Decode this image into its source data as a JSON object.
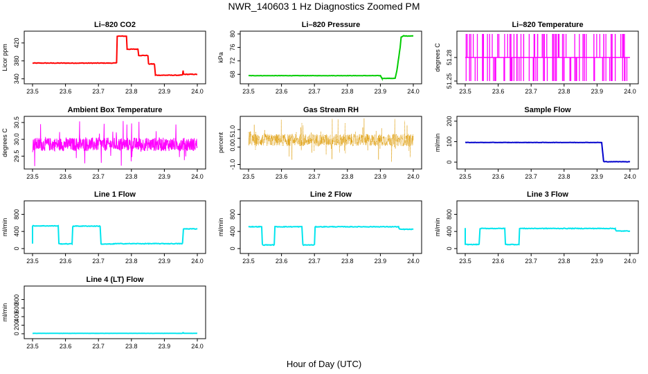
{
  "page": {
    "title": "NWR_140603  1 Hz Diagnostics Zoomed PM",
    "xlabel": "Hour of Day (UTC)"
  },
  "chart_data": [
    {
      "type": "line",
      "title": "Li–820 CO2",
      "ylabel": "Licor ppm",
      "color": "#ff0000",
      "xlim": [
        23.5,
        24.0
      ],
      "ylim": [
        335,
        440
      ],
      "xticks": [
        "23.5",
        "23.6",
        "23.7",
        "23.8",
        "23.9",
        "24.0"
      ],
      "yticks": [
        340,
        380,
        420
      ],
      "noise": 0.6,
      "x": [
        23.5,
        23.755,
        23.757,
        23.785,
        23.787,
        23.82,
        23.822,
        23.85,
        23.852,
        23.87,
        23.873,
        23.955,
        23.957,
        23.958,
        23.96,
        24.0
      ],
      "y": [
        375,
        375,
        435,
        435,
        406,
        406,
        392,
        392,
        373,
        373,
        348,
        348,
        358,
        350,
        350,
        350
      ]
    },
    {
      "type": "line",
      "title": "Li–820 Pressure",
      "ylabel": "kPa",
      "color": "#00cc00",
      "xlim": [
        23.5,
        24.0
      ],
      "ylim": [
        66,
        80
      ],
      "xticks": [
        "23.5",
        "23.6",
        "23.7",
        "23.8",
        "23.9",
        "24.0"
      ],
      "yticks": [
        68,
        72,
        76,
        80
      ],
      "noise": 0.05,
      "x": [
        23.5,
        23.9,
        23.905,
        23.945,
        23.95,
        23.96,
        23.963,
        23.97,
        24.0
      ],
      "y": [
        67.6,
        67.6,
        66.8,
        66.8,
        69,
        76,
        79,
        79.4,
        79.4
      ]
    },
    {
      "type": "spikes",
      "title": "Li–820 Temperature",
      "ylabel": "degrees C",
      "color": "#ff00ff",
      "xlim": [
        23.5,
        24.0
      ],
      "ylim": [
        51.25,
        51.31
      ],
      "base": 51.28,
      "high": 51.31,
      "low": 51.25,
      "count": 95,
      "xticks": [
        "23.5",
        "23.6",
        "23.7",
        "23.8",
        "23.9",
        "24.0"
      ],
      "yticks": [
        "51.25",
        "51.28"
      ]
    },
    {
      "type": "noise",
      "title": "Ambient Box Temperature",
      "ylabel": "degrees C",
      "color": "#ff00ff",
      "xlim": [
        23.5,
        24.0
      ],
      "ylim": [
        29.2,
        30.6
      ],
      "center": 29.85,
      "amp": 0.2,
      "xticks": [
        "23.5",
        "23.6",
        "23.7",
        "23.8",
        "23.9",
        "24.0"
      ],
      "yticks": [
        "29.5",
        "30.0",
        "30.5"
      ]
    },
    {
      "type": "noise-dots",
      "title": "Gas Stream RH",
      "ylabel": "percent",
      "color": "#dd9900",
      "xlim": [
        23.5,
        24.0
      ],
      "ylim": [
        -1.1,
        1.6
      ],
      "center": 0.4,
      "amp": 0.35,
      "xticks": [
        "23.5",
        "23.6",
        "23.7",
        "23.8",
        "23.9",
        "24.0"
      ],
      "yticks": [
        "-1.0",
        "0.0",
        "0.5",
        "1.0"
      ]
    },
    {
      "type": "line",
      "title": "Sample Flow",
      "ylabel": "ml/min",
      "color": "#0000cc",
      "xlim": [
        23.5,
        24.0
      ],
      "ylim": [
        -20,
        210
      ],
      "xticks": [
        "23.5",
        "23.6",
        "23.7",
        "23.8",
        "23.9",
        "24.0"
      ],
      "yticks": [
        0,
        100,
        200
      ],
      "noise": 0.8,
      "x": [
        23.5,
        23.914,
        23.92,
        24.0
      ],
      "y": [
        96,
        96,
        2,
        2
      ]
    },
    {
      "type": "line",
      "title": "Line 1 Flow",
      "ylabel": "ml/min",
      "color": "#00e5ee",
      "xlim": [
        23.5,
        24.0
      ],
      "ylim": [
        -50,
        1050
      ],
      "xticks": [
        "23.5",
        "23.6",
        "23.7",
        "23.8",
        "23.9",
        "24.0"
      ],
      "yticks": [
        0,
        400,
        800
      ],
      "noise": 7,
      "x": [
        23.5,
        23.5,
        23.578,
        23.58,
        23.62,
        23.622,
        23.705,
        23.708,
        23.745,
        23.748,
        23.955,
        23.958,
        24.0
      ],
      "y": [
        120,
        530,
        530,
        110,
        110,
        525,
        525,
        105,
        105,
        115,
        115,
        460,
        460
      ]
    },
    {
      "type": "line",
      "title": "Line 2 Flow",
      "ylabel": "ml/min",
      "color": "#00e5ee",
      "xlim": [
        23.5,
        24.0
      ],
      "ylim": [
        -50,
        1050
      ],
      "xticks": [
        "23.5",
        "23.6",
        "23.7",
        "23.8",
        "23.9",
        "24.0"
      ],
      "yticks": [
        0,
        400,
        800
      ],
      "noise": 7,
      "x": [
        23.5,
        23.54,
        23.542,
        23.578,
        23.58,
        23.662,
        23.665,
        23.7,
        23.702,
        23.955,
        23.958,
        24.0
      ],
      "y": [
        510,
        510,
        85,
        85,
        510,
        510,
        85,
        85,
        510,
        510,
        450,
        450
      ]
    },
    {
      "type": "line",
      "title": "Line 3 Flow",
      "ylabel": "ml/min",
      "color": "#00e5ee",
      "xlim": [
        23.5,
        24.0
      ],
      "ylim": [
        -50,
        1050
      ],
      "xticks": [
        "23.5",
        "23.6",
        "23.7",
        "23.8",
        "23.9",
        "24.0"
      ],
      "yticks": [
        0,
        400,
        800
      ],
      "noise": 7,
      "x": [
        23.5,
        23.5,
        23.542,
        23.545,
        23.62,
        23.622,
        23.663,
        23.665,
        23.955,
        23.958,
        24.0
      ],
      "y": [
        480,
        95,
        95,
        470,
        470,
        95,
        95,
        470,
        470,
        410,
        410
      ]
    },
    {
      "type": "line",
      "title": "Line 4 (LT) Flow",
      "ylabel": "ml/min",
      "color": "#00e5ee",
      "xlim": [
        23.5,
        24.0
      ],
      "ylim": [
        -50,
        1050
      ],
      "xticks": [
        "23.5",
        "23.6",
        "23.7",
        "23.8",
        "23.9",
        "24.0"
      ],
      "yticks": [
        0,
        200,
        400,
        600,
        800
      ],
      "noise": 2,
      "x": [
        23.5,
        23.955,
        23.957,
        23.959,
        24.0
      ],
      "y": [
        10,
        10,
        35,
        10,
        10
      ]
    }
  ]
}
